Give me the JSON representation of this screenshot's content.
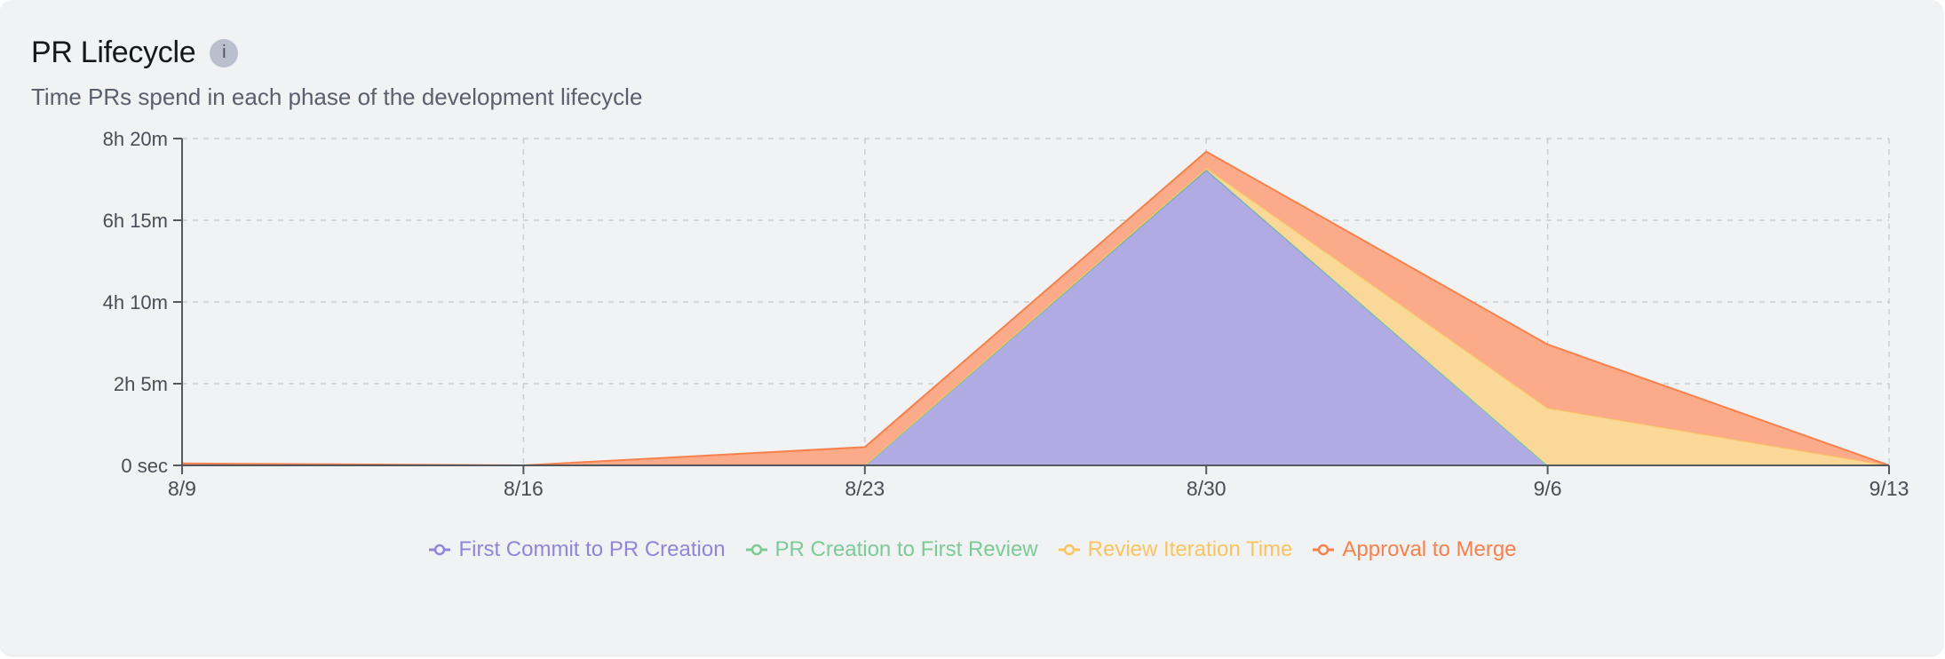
{
  "header": {
    "title": "PR Lifecycle",
    "info_icon": "i",
    "subtitle": "Time PRs spend in each phase of the development lifecycle"
  },
  "colors": {
    "first_commit": "#8f86d9",
    "first_review": "#7ccb96",
    "review_iteration": "#fbc45e",
    "approval": "#f7814d"
  },
  "chart_data": {
    "type": "area",
    "stacked": true,
    "title": "PR Lifecycle",
    "subtitle": "Time PRs spend in each phase of the development lifecycle",
    "xlabel": "",
    "ylabel": "",
    "units": "minutes",
    "categories": [
      "8/9",
      "8/16",
      "8/23",
      "8/30",
      "9/6",
      "9/13"
    ],
    "y_ticks": [
      {
        "label": "0 sec",
        "value": 0
      },
      {
        "label": "2h 5m",
        "value": 125
      },
      {
        "label": "4h 10m",
        "value": 250
      },
      {
        "label": "6h 15m",
        "value": 375
      },
      {
        "label": "8h 20m",
        "value": 500
      }
    ],
    "ylim": [
      0,
      500
    ],
    "grid": true,
    "legend_position": "bottom",
    "series": [
      {
        "name": "First Commit to PR Creation",
        "values": [
          0,
          0,
          0,
          452,
          0,
          0
        ]
      },
      {
        "name": "PR Creation to First Review",
        "values": [
          0,
          0,
          0,
          1,
          0,
          0
        ]
      },
      {
        "name": "Review Iteration Time",
        "values": [
          0,
          0,
          1,
          2,
          88,
          0
        ]
      },
      {
        "name": "Approval to Merge",
        "values": [
          3,
          0,
          27,
          25,
          97,
          0
        ]
      }
    ]
  },
  "legend": [
    {
      "label": "First Commit to PR Creation",
      "color": "#8f86d9"
    },
    {
      "label": "PR Creation to First Review",
      "color": "#7ccb96"
    },
    {
      "label": "Review Iteration Time",
      "color": "#fbc45e"
    },
    {
      "label": "Approval to Merge",
      "color": "#f7814d"
    }
  ]
}
